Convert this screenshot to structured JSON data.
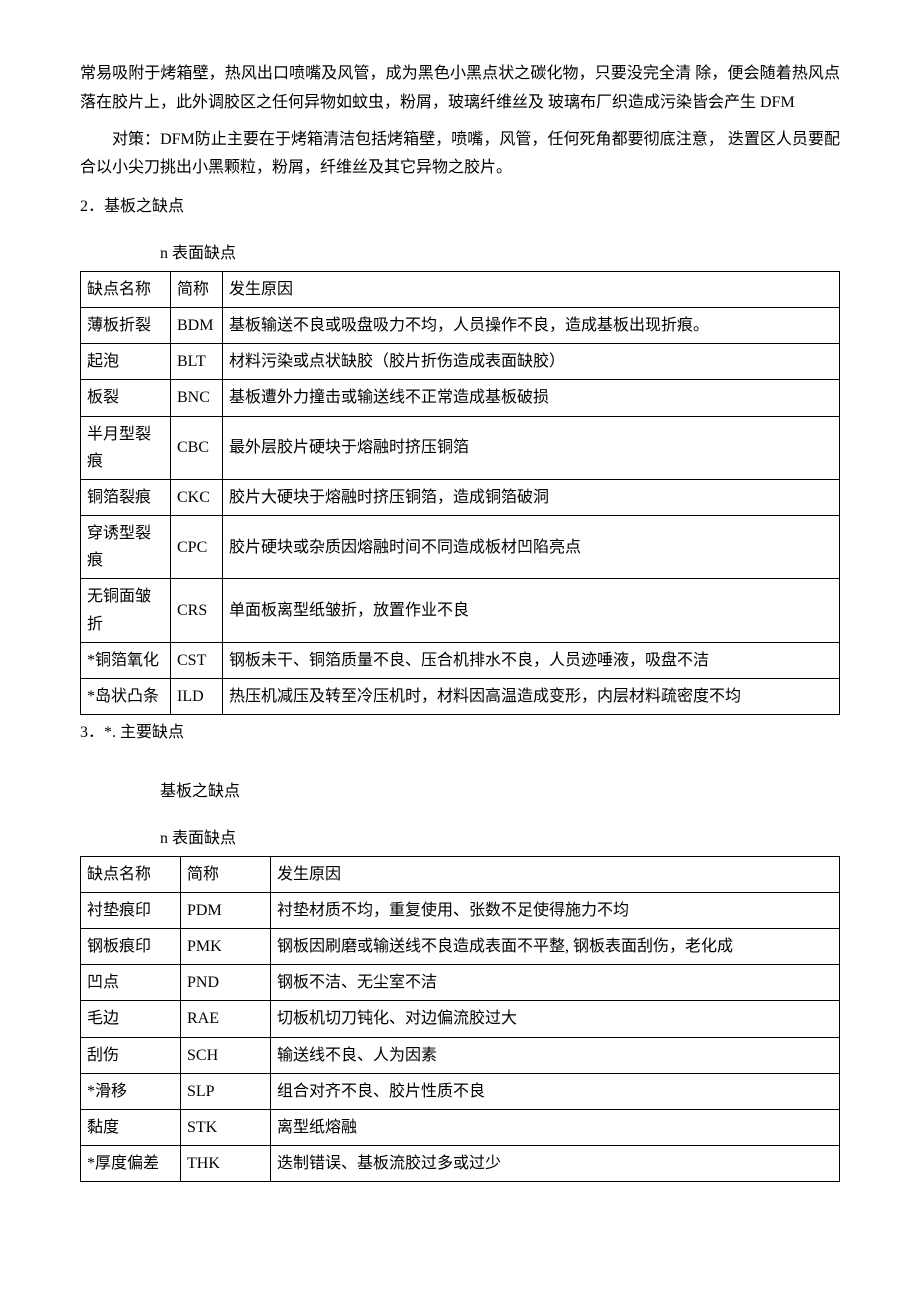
{
  "intro": {
    "p1": "常易吸附于烤箱壁，热风出口喷嘴及风管，成为黑色小黑点状之碳化物，只要没完全清 除，便会随着热风点落在胶片上，此外调胶区之任何异物如蚊虫，粉屑，玻璃纤维丝及 玻璃布厂织造成污染皆会产生 DFM",
    "p2": "对策：DFM防止主要在于烤箱清洁包括烤箱壁，喷嘴，风管，任何死角都要彻底注意，  迭置区人员要配合以小尖刀挑出小黑颗粒，粉屑，纤维丝及其它异物之胶片。"
  },
  "section2": {
    "heading": "2．基板之缺点",
    "sublabel": "n  表面缺点",
    "headers": {
      "name": "缺点名称",
      "abbr": "简称",
      "cause": "发生原因"
    },
    "rows": [
      {
        "name": "薄板折裂",
        "abbr": "BDM",
        "cause": "基板输送不良或吸盘吸力不均，人员操作不良，造成基板出现折痕。"
      },
      {
        "name": "起泡",
        "abbr": "BLT",
        "cause": "材料污染或点状缺胶（胶片折伤造成表面缺胶）"
      },
      {
        "name": "板裂",
        "abbr": "BNC",
        "cause": "基板遭外力撞击或输送线不正常造成基板破损"
      },
      {
        "name": "半月型裂痕",
        "abbr": "CBC",
        "cause": "最外层胶片硬块于熔融时挤压铜箔"
      },
      {
        "name": "铜箔裂痕",
        "abbr": "CKC",
        "cause": "胶片大硬块于熔融时挤压铜箔，造成铜箔破洞"
      },
      {
        "name": "穿诱型裂痕",
        "abbr": "CPC",
        "cause": "胶片硬块或杂质因熔融时间不同造成板材凹陷亮点"
      },
      {
        "name": "无铜面皱折",
        "abbr": "CRS",
        "cause": "单面板离型纸皱折，放置作业不良"
      },
      {
        "name": "*铜箔氧化",
        "abbr": "CST",
        "cause": "钢板未干、铜箔质量不良、压合机排水不良，人员迹唾液，吸盘不洁"
      },
      {
        "name": "*岛状凸条",
        "abbr": "ILD",
        "cause": "热压机减压及转至冷压机时，材料因高温造成变形，内层材料疏密度不均"
      }
    ],
    "note": "3．*. 主要缺点"
  },
  "section3": {
    "title": "基板之缺点",
    "sublabel": "n  表面缺点",
    "headers": {
      "name": "缺点名称",
      "abbr": "简称",
      "cause": "发生原因"
    },
    "rows": [
      {
        "name": "衬垫痕印",
        "abbr": "PDM",
        "cause": "衬垫材质不均，重复使用、张数不足使得施力不均"
      },
      {
        "name": "钢板痕印",
        "abbr": "PMK",
        "cause": "钢板因刷磨或输送线不良造成表面不平整, 钢板表面刮伤，老化成"
      },
      {
        "name": "凹点",
        "abbr": "PND",
        "cause": "钢板不洁、无尘室不洁"
      },
      {
        "name": "毛边",
        "abbr": "RAE",
        "cause": "切板机切刀钝化、对边偏流胶过大"
      },
      {
        "name": "刮伤",
        "abbr": "SCH",
        "cause": "输送线不良、人为因素"
      },
      {
        "name": "*滑移",
        "abbr": "SLP",
        "cause": "组合对齐不良、胶片性质不良"
      },
      {
        "name": "黏度",
        "abbr": "STK",
        "cause": "离型纸熔融"
      },
      {
        "name": "*厚度偏差",
        "abbr": "THK",
        "cause": "迭制错误、基板流胶过多或过少"
      }
    ]
  }
}
